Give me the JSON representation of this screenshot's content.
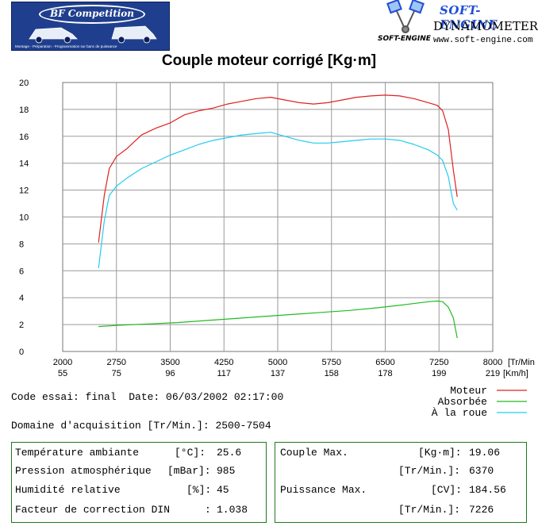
{
  "header": {
    "bf_logo_text": "BF Competition",
    "bf_logo_tagline": "Montage - Préparation - Programmation sur banc de puissance",
    "brand": "SOFT-ENGINE",
    "brand_small": "SOFT-ENGINE",
    "dynamometers": "DYNAMOMETERS",
    "website": "www.soft-engine.com"
  },
  "chart_data": {
    "type": "line",
    "title": "Couple moteur corrigé [Kg·m]",
    "xlim": [
      2000,
      8000
    ],
    "ylim": [
      0,
      20
    ],
    "x_ticks": [
      "2000",
      "2750",
      "3500",
      "4250",
      "5000",
      "5750",
      "6500",
      "7250",
      "8000"
    ],
    "x_ticks_secondary": [
      "55",
      "75",
      "96",
      "117",
      "137",
      "158",
      "178",
      "199",
      "219"
    ],
    "x_unit_primary": "[Tr/Min",
    "x_unit_secondary": "[Km/h]",
    "y_ticks": [
      "0",
      "2",
      "4",
      "6",
      "8",
      "10",
      "12",
      "14",
      "16",
      "18",
      "20"
    ],
    "grid": true,
    "legend": "right",
    "series": [
      {
        "name": "Moteur",
        "color": "#e02020",
        "x": [
          2500,
          2580,
          2650,
          2750,
          2900,
          3100,
          3300,
          3500,
          3700,
          3900,
          4100,
          4300,
          4500,
          4700,
          4900,
          5100,
          5300,
          5500,
          5700,
          5900,
          6100,
          6300,
          6500,
          6700,
          6900,
          7100,
          7226,
          7300,
          7380,
          7450,
          7504
        ],
        "y": [
          8.1,
          11.6,
          13.6,
          14.5,
          15.1,
          16.1,
          16.6,
          17.0,
          17.6,
          17.9,
          18.1,
          18.4,
          18.6,
          18.8,
          18.9,
          18.7,
          18.5,
          18.4,
          18.5,
          18.7,
          18.9,
          19.0,
          19.06,
          19.0,
          18.8,
          18.5,
          18.3,
          17.9,
          16.5,
          13.5,
          11.5
        ]
      },
      {
        "name": "Absorbée",
        "color": "#22bb22",
        "x": [
          2500,
          2800,
          3200,
          3600,
          4000,
          4400,
          4800,
          5200,
          5600,
          6000,
          6400,
          6800,
          7100,
          7226,
          7300,
          7380,
          7450,
          7504
        ],
        "y": [
          1.85,
          1.95,
          2.05,
          2.15,
          2.3,
          2.45,
          2.6,
          2.75,
          2.9,
          3.05,
          3.25,
          3.5,
          3.7,
          3.75,
          3.7,
          3.3,
          2.5,
          1.0
        ]
      },
      {
        "name": "À la roue",
        "color": "#22ccee",
        "x": [
          2500,
          2580,
          2650,
          2750,
          2900,
          3100,
          3300,
          3500,
          3700,
          3900,
          4100,
          4300,
          4500,
          4700,
          4900,
          5100,
          5300,
          5500,
          5700,
          5900,
          6100,
          6300,
          6500,
          6700,
          6900,
          7100,
          7226,
          7300,
          7380,
          7450,
          7504
        ],
        "y": [
          6.2,
          9.7,
          11.6,
          12.3,
          12.9,
          13.6,
          14.1,
          14.6,
          15.0,
          15.4,
          15.7,
          15.9,
          16.1,
          16.2,
          16.3,
          16.0,
          15.7,
          15.5,
          15.5,
          15.6,
          15.7,
          15.8,
          15.8,
          15.7,
          15.4,
          15.0,
          14.6,
          14.2,
          13.0,
          11.0,
          10.5
        ]
      }
    ]
  },
  "test_info": {
    "code_line": "Code essai: final  Date: 06/03/2002 02:17:00",
    "domain_line": "Domaine d'acquisition [Tr/Min.]: 2500-7504"
  },
  "conditions": [
    {
      "label": "Température ambiante",
      "unit": "[°C]:",
      "value": "25.6"
    },
    {
      "label": "Pression atmosphérique",
      "unit": "[mBar]:",
      "value": "985"
    },
    {
      "label": "Humidité relative",
      "unit": "[%]:",
      "value": "45"
    },
    {
      "label": "Facteur de correction DIN",
      "unit": ":",
      "value": "1.038"
    }
  ],
  "results": [
    {
      "label": "Couple Max.",
      "unit": "[Kg·m]:",
      "value": "19.06"
    },
    {
      "label": "",
      "unit": "[Tr/Min.]:",
      "value": "6370"
    },
    {
      "label": "Puissance Max.",
      "unit": "[CV]:",
      "value": "184.56"
    },
    {
      "label": "",
      "unit": "[Tr/Min.]:",
      "value": "7226"
    }
  ]
}
